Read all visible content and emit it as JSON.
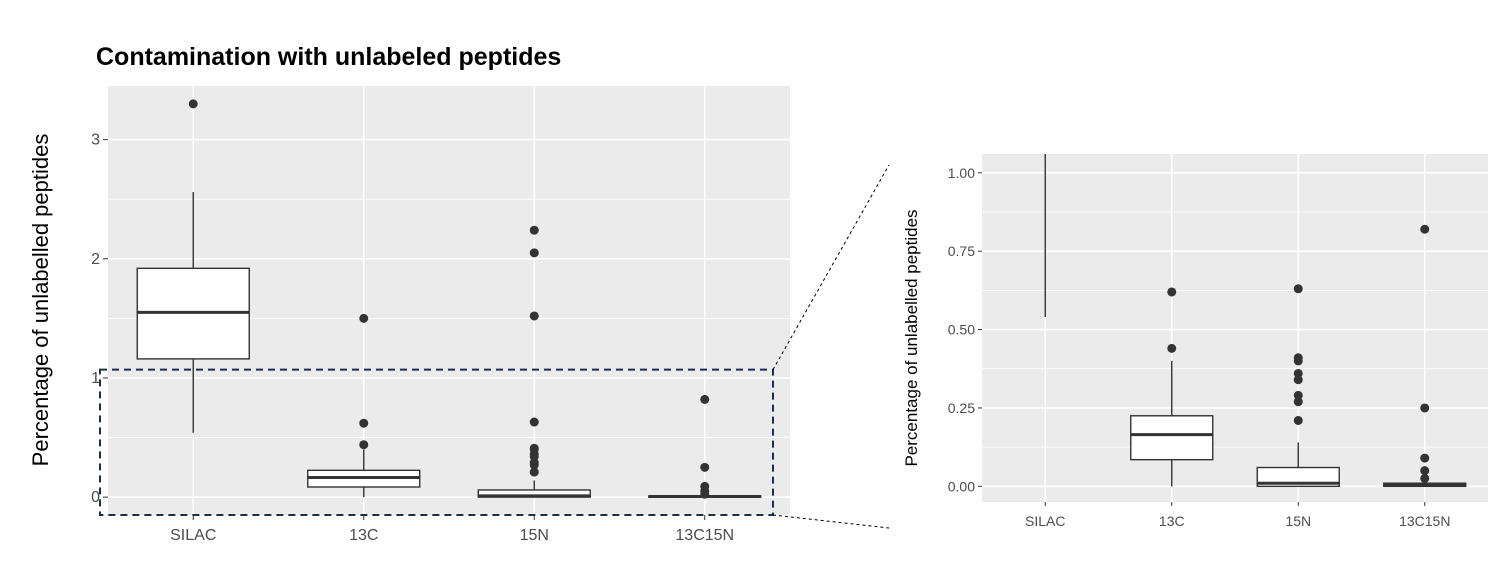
{
  "chart_data": [
    {
      "type": "box",
      "title": "Contamination with unlabeled peptides",
      "xlabel": "",
      "ylabel": "Percentage of unlabelled peptides",
      "categories": [
        "SILAC",
        "13C",
        "15N",
        "13C15N"
      ],
      "ylim": [
        -0.15,
        3.45
      ],
      "yticks": [
        0,
        1,
        2,
        3
      ],
      "ytick_labels": [
        "0",
        "1",
        "2",
        "3"
      ],
      "grid": true,
      "boxes": [
        {
          "category": "SILAC",
          "whisker_low": 0.54,
          "q1": 1.16,
          "median": 1.55,
          "q3": 1.92,
          "whisker_high": 2.56,
          "outliers": [
            3.3
          ]
        },
        {
          "category": "13C",
          "whisker_low": 0.0,
          "q1": 0.085,
          "median": 0.165,
          "q3": 0.225,
          "whisker_high": 0.4,
          "outliers": [
            0.44,
            0.62,
            1.5
          ]
        },
        {
          "category": "15N",
          "whisker_low": 0.0,
          "q1": 0.0,
          "median": 0.01,
          "q3": 0.06,
          "whisker_high": 0.14,
          "outliers": [
            0.21,
            0.27,
            0.29,
            0.34,
            0.36,
            0.4,
            0.41,
            0.63,
            1.52,
            2.05,
            2.24
          ]
        },
        {
          "category": "13C15N",
          "whisker_low": 0.0,
          "q1": 0.0,
          "median": 0.005,
          "q3": 0.01,
          "whisker_high": 0.015,
          "outliers": [
            0.025,
            0.05,
            0.09,
            0.25,
            0.82
          ]
        }
      ],
      "zoom_region": {
        "ylim": [
          -0.15,
          1.07
        ],
        "style": "dashed",
        "color": "#1f2d4d"
      }
    },
    {
      "type": "box",
      "title": "",
      "xlabel": "",
      "ylabel": "Percentage of unlabelled peptides",
      "categories": [
        "SILAC",
        "13C",
        "15N",
        "13C15N"
      ],
      "ylim": [
        -0.05,
        1.06
      ],
      "yticks": [
        0,
        0.25,
        0.5,
        0.75,
        1.0
      ],
      "ytick_labels": [
        "0.00",
        "0.25",
        "0.50",
        "0.75",
        "1.00"
      ],
      "grid": true,
      "note": "zoomed view of lower region"
    }
  ],
  "colors": {
    "panel_background": "#ebebeb",
    "grid": "#ffffff",
    "box_line": "#333333",
    "box_fill": "#ffffff",
    "outlier": "#333333",
    "zoom_box": "#1f2d4d"
  }
}
